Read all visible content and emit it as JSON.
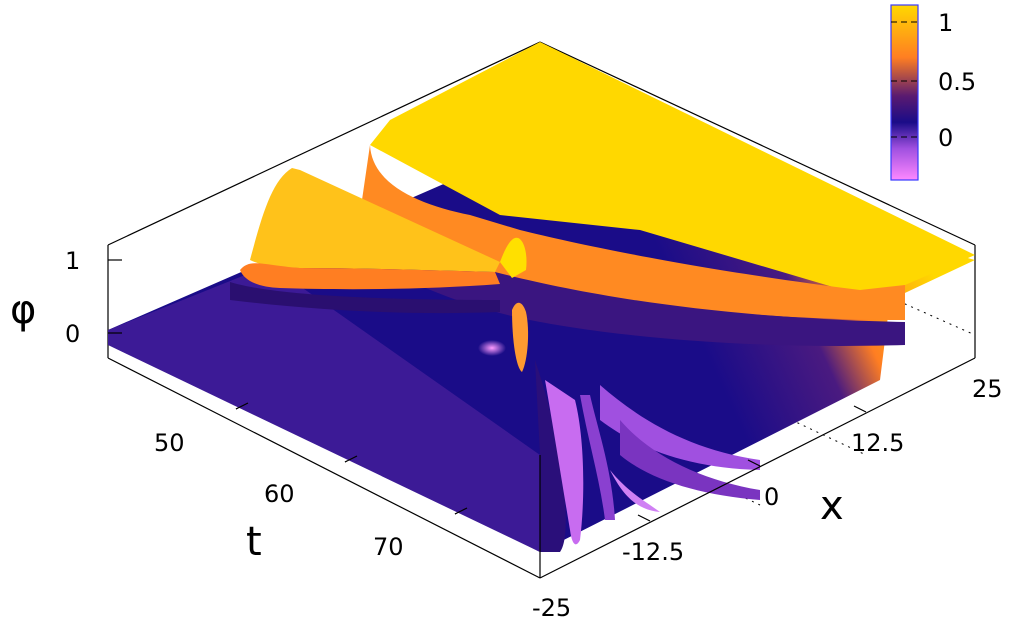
{
  "chart_data": {
    "type": "surface3d",
    "title": "",
    "xlabel": "x",
    "ylabel": "t",
    "zlabel": "φ",
    "x_range": [
      -25,
      25
    ],
    "t_range": [
      40,
      80
    ],
    "z_range": [
      -0.25,
      1.15
    ],
    "x_ticks": [
      "-25",
      "-12.5",
      "0",
      "12.5",
      "25"
    ],
    "t_ticks": [
      "50",
      "60",
      "70"
    ],
    "z_ticks": [
      "0",
      "1"
    ],
    "colorbar": {
      "ticks": [
        "1",
        "0.5",
        "0"
      ],
      "range": [
        -0.25,
        1.15
      ],
      "palette": [
        "#ff88ff",
        "#a050e0",
        "#1a0c88",
        "#ff7e22",
        "#ffd800"
      ]
    },
    "grid": true,
    "surface_description_levels": {
      "left_plateau": 0,
      "right_plateau": 1
    }
  }
}
